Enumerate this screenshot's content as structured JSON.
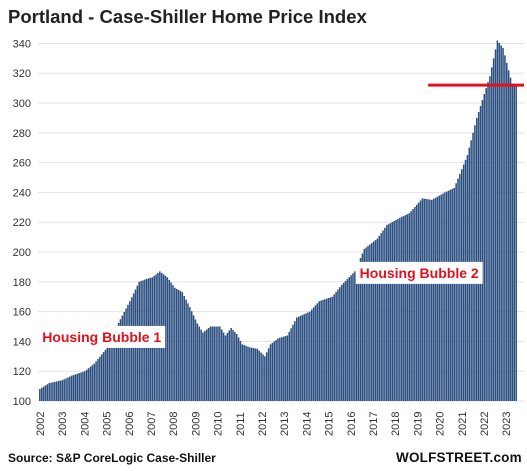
{
  "chart_data": {
    "type": "bar",
    "title": "Portland - Case-Shiller Home Price Index",
    "source": "Source: S&P CoreLogic Case-Shiller",
    "brand": "WOLFSTREET.com",
    "ylim": [
      100,
      345
    ],
    "yticks": [
      100,
      120,
      140,
      160,
      180,
      200,
      220,
      240,
      260,
      280,
      300,
      320,
      340
    ],
    "xticks": [
      "2002",
      "2003",
      "2004",
      "2005",
      "2006",
      "2007",
      "2008",
      "2009",
      "2010",
      "2011",
      "2012",
      "2013",
      "2014",
      "2015",
      "2016",
      "2017",
      "2018",
      "2019",
      "2020",
      "2021",
      "2022",
      "2023"
    ],
    "bar_color": "#2a4e80",
    "reference_line": {
      "value": 312,
      "color": "#e3101b"
    },
    "annotations": [
      {
        "text": "Housing Bubble 1",
        "x": "2002.1",
        "y": 143
      },
      {
        "text": "Housing Bubble 2",
        "x": "2016.4",
        "y": 186
      }
    ],
    "series": [
      {
        "frequency": "monthly",
        "start": "2002-01",
        "anchors": [
          [
            "2002-01",
            108
          ],
          [
            "2002-06",
            112
          ],
          [
            "2003-01",
            114
          ],
          [
            "2003-06",
            117
          ],
          [
            "2004-01",
            120
          ],
          [
            "2004-06",
            125
          ],
          [
            "2005-01",
            136
          ],
          [
            "2005-06",
            150
          ],
          [
            "2006-01",
            167
          ],
          [
            "2006-06",
            180
          ],
          [
            "2006-10",
            182
          ],
          [
            "2007-01",
            183
          ],
          [
            "2007-05",
            187
          ],
          [
            "2007-09",
            183
          ],
          [
            "2008-01",
            176
          ],
          [
            "2008-05",
            173
          ],
          [
            "2008-09",
            163
          ],
          [
            "2009-01",
            152
          ],
          [
            "2009-04",
            146
          ],
          [
            "2009-08",
            150
          ],
          [
            "2010-01",
            150
          ],
          [
            "2010-04",
            144
          ],
          [
            "2010-07",
            149
          ],
          [
            "2010-10",
            145
          ],
          [
            "2011-01",
            138
          ],
          [
            "2011-05",
            136
          ],
          [
            "2011-09",
            135
          ],
          [
            "2012-01",
            130
          ],
          [
            "2012-04",
            138
          ],
          [
            "2012-08",
            142
          ],
          [
            "2013-01",
            144
          ],
          [
            "2013-06",
            156
          ],
          [
            "2014-01",
            160
          ],
          [
            "2014-06",
            167
          ],
          [
            "2015-01",
            170
          ],
          [
            "2015-06",
            178
          ],
          [
            "2016-01",
            187
          ],
          [
            "2016-06",
            202
          ],
          [
            "2017-01",
            209
          ],
          [
            "2017-06",
            218
          ],
          [
            "2018-01",
            223
          ],
          [
            "2018-06",
            226
          ],
          [
            "2019-01",
            236
          ],
          [
            "2019-06",
            235
          ],
          [
            "2020-01",
            240
          ],
          [
            "2020-06",
            243
          ],
          [
            "2021-01",
            265
          ],
          [
            "2021-06",
            290
          ],
          [
            "2022-01",
            318
          ],
          [
            "2022-05",
            342
          ],
          [
            "2022-08",
            337
          ],
          [
            "2023-01",
            312
          ]
        ]
      }
    ]
  }
}
